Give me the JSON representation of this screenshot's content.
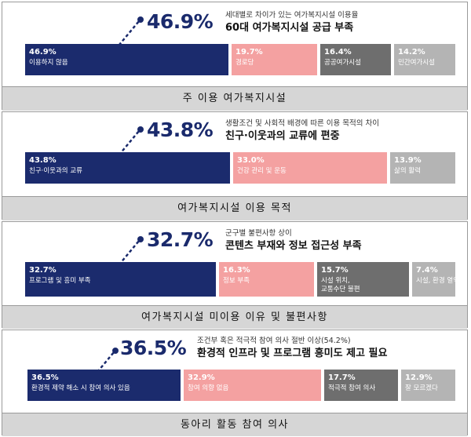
{
  "chart_data": [
    {
      "type": "bar",
      "headline": "46.9%",
      "subtitle": "세대별로 차이가 있는 여가복지시설 이용율",
      "main_title": "60대 여가복지시설 공급 부족",
      "footer": "주 이용 여가복지시설",
      "segments": [
        {
          "value_label": "46.9%",
          "label": "이용하지 않음",
          "value": 46.9,
          "color": "#1b2b6d"
        },
        {
          "value_label": "19.7%",
          "label": "경로당",
          "value": 19.7,
          "color": "#f4a1a1"
        },
        {
          "value_label": "16.4%",
          "label": "공공여가시설",
          "value": 16.4,
          "color": "#6e6e6e"
        },
        {
          "value_label": "14.2%",
          "label": "민간여가시설",
          "value": 14.2,
          "color": "#b4b4b4"
        }
      ]
    },
    {
      "type": "bar",
      "headline": "43.8%",
      "subtitle": "생활조건 및 사회적 배경에 따른 이용 목적의 차이",
      "main_title": "친구·이웃과의 교류에 편중",
      "footer": "여가복지시설 이용 목적",
      "segments": [
        {
          "value_label": "43.8%",
          "label": "친구·이웃과의 교류",
          "value": 43.8,
          "color": "#1b2b6d"
        },
        {
          "value_label": "33.0%",
          "label": "건강 관리 및 운동",
          "value": 33.0,
          "color": "#f4a1a1"
        },
        {
          "value_label": "13.9%",
          "label": "삶의 활력",
          "value": 13.9,
          "color": "#b4b4b4"
        }
      ]
    },
    {
      "type": "bar",
      "headline": "32.7%",
      "subtitle": "군구별 불편사항 상이",
      "main_title": "콘텐츠 부재와 정보 접근성 부족",
      "footer": "여가복지시설 미이용 이유 및 불편사항",
      "segments": [
        {
          "value_label": "32.7%",
          "label": "프로그램 및 흥미 부족",
          "value": 32.7,
          "color": "#1b2b6d"
        },
        {
          "value_label": "16.3%",
          "label": "정보 부족",
          "value": 16.3,
          "color": "#f4a1a1"
        },
        {
          "value_label": "15.7%",
          "label": "시설 위치,",
          "label2": "교통수단 불편",
          "value": 15.7,
          "color": "#6e6e6e"
        },
        {
          "value_label": "7.4%",
          "label": "시설, 환경 열악",
          "value": 7.4,
          "color": "#b4b4b4"
        }
      ]
    },
    {
      "type": "bar",
      "headline": "36.5%",
      "subtitle": "조건부 혹은 적극적 참여 의사 절반 이상(54.2%)",
      "main_title": "환경적 인프라 및 프로그램 흥미도 제고 필요",
      "footer": "동아리 활동 참여 의사",
      "segments": [
        {
          "value_label": "36.5%",
          "label": "환경적 제약 해소 시 참여 의사 있음",
          "value": 36.5,
          "color": "#1b2b6d"
        },
        {
          "value_label": "32.9%",
          "label": "참여 의향 없음",
          "value": 32.9,
          "color": "#f4a1a1"
        },
        {
          "value_label": "17.7%",
          "label": "적극적 참여 의사",
          "value": 17.7,
          "color": "#6e6e6e"
        },
        {
          "value_label": "12.9%",
          "label": "잘 모르겠다",
          "value": 12.9,
          "color": "#b4b4b4"
        }
      ]
    }
  ]
}
